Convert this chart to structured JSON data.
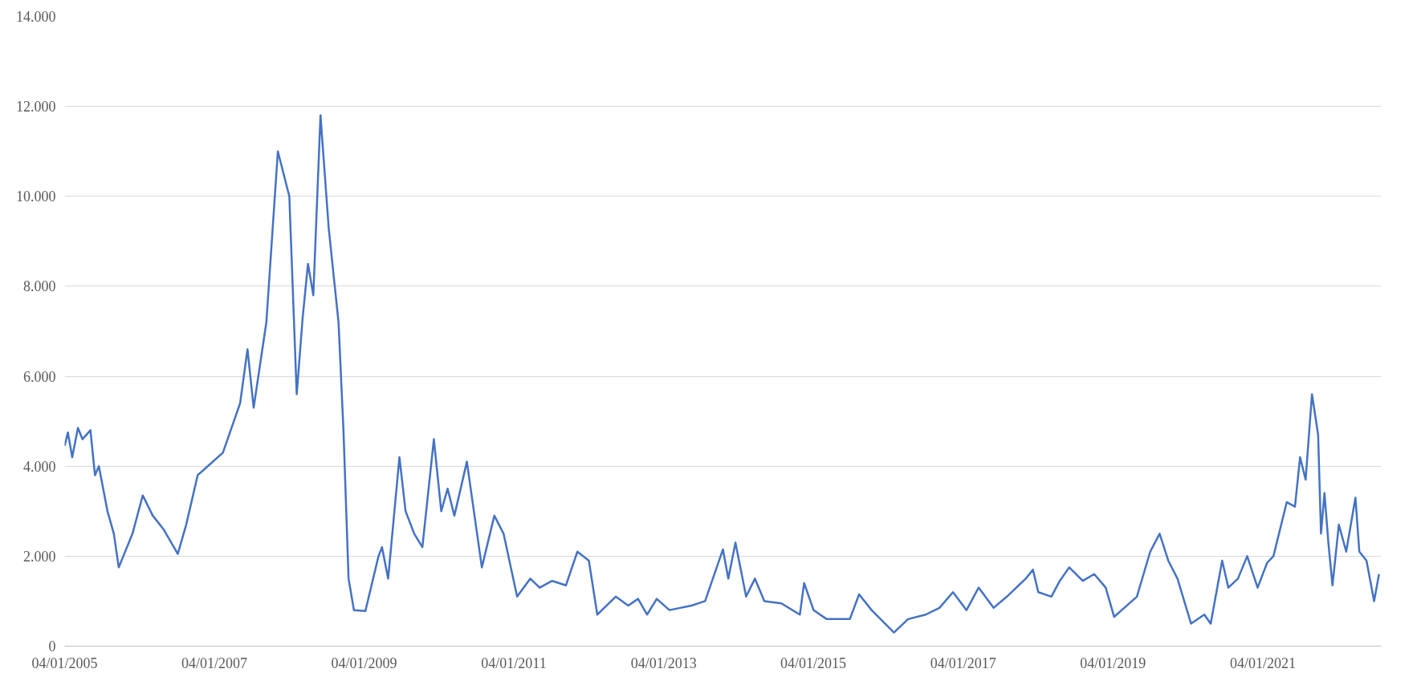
{
  "chart_data": {
    "type": "line",
    "x": [
      "2005-01-04",
      "2005-01-20",
      "2005-02-10",
      "2005-03-10",
      "2005-04-01",
      "2005-05-10",
      "2005-06-01",
      "2005-06-20",
      "2005-08-01",
      "2005-09-01",
      "2005-09-25",
      "2005-12-01",
      "2006-01-20",
      "2006-03-10",
      "2006-05-01",
      "2006-07-10",
      "2006-08-20",
      "2006-10-15",
      "2007-02-15",
      "2007-05-10",
      "2007-06-15",
      "2007-07-15",
      "2007-09-15",
      "2007-11-10",
      "2008-01-05",
      "2008-02-10",
      "2008-03-10",
      "2008-04-05",
      "2008-05-01",
      "2008-06-05",
      "2008-07-15",
      "2008-09-01",
      "2008-09-25",
      "2008-10-20",
      "2008-11-15",
      "2009-01-10",
      "2009-03-15",
      "2009-04-01",
      "2009-05-01",
      "2009-06-25",
      "2009-07-25",
      "2009-09-05",
      "2009-10-15",
      "2009-12-10",
      "2010-01-15",
      "2010-02-15",
      "2010-03-20",
      "2010-05-20",
      "2010-08-01",
      "2010-10-01",
      "2010-11-15",
      "2011-01-20",
      "2011-03-25",
      "2011-05-10",
      "2011-07-10",
      "2011-09-15",
      "2011-11-10",
      "2012-01-05",
      "2012-02-15",
      "2012-05-15",
      "2012-07-15",
      "2012-09-01",
      "2012-10-15",
      "2012-12-01",
      "2013-02-01",
      "2013-05-20",
      "2013-07-25",
      "2013-10-20",
      "2013-11-15",
      "2013-12-20",
      "2014-02-10",
      "2014-03-25",
      "2014-05-10",
      "2014-08-01",
      "2014-10-30",
      "2014-11-20",
      "2015-01-05",
      "2015-03-10",
      "2015-07-01",
      "2015-08-15",
      "2015-10-15",
      "2016-02-01",
      "2016-04-10",
      "2016-07-05",
      "2016-09-10",
      "2016-11-15",
      "2017-01-20",
      "2017-03-20",
      "2017-06-01",
      "2017-08-05",
      "2017-11-05",
      "2017-12-10",
      "2018-01-05",
      "2018-03-10",
      "2018-04-20",
      "2018-06-05",
      "2018-08-10",
      "2018-10-05",
      "2018-11-30",
      "2019-01-10",
      "2019-05-01",
      "2019-07-05",
      "2019-08-20",
      "2019-10-01",
      "2019-11-15",
      "2020-01-20",
      "2020-03-25",
      "2020-04-25",
      "2020-06-20",
      "2020-07-20",
      "2020-09-05",
      "2020-10-20",
      "2020-12-10",
      "2021-01-25",
      "2021-02-25",
      "2021-05-01",
      "2021-06-10",
      "2021-07-05",
      "2021-08-01",
      "2021-09-01",
      "2021-10-01",
      "2021-10-15",
      "2021-11-01",
      "2021-11-20",
      "2021-12-10",
      "2022-01-10",
      "2022-02-15",
      "2022-04-01",
      "2022-04-20",
      "2022-05-25",
      "2022-07-01",
      "2022-07-25"
    ],
    "values": [
      4450,
      4750,
      4200,
      4850,
      4600,
      4800,
      3800,
      4000,
      3000,
      2500,
      1750,
      2500,
      3350,
      2900,
      2600,
      2050,
      2700,
      3800,
      4300,
      5400,
      6600,
      5300,
      7200,
      11000,
      10000,
      5600,
      7300,
      8500,
      7800,
      11800,
      9300,
      7200,
      4800,
      1500,
      800,
      780,
      2000,
      2200,
      1500,
      4200,
      3000,
      2500,
      2200,
      4600,
      3000,
      3500,
      2900,
      4100,
      1750,
      2900,
      2500,
      1100,
      1500,
      1300,
      1450,
      1350,
      2100,
      1900,
      700,
      1100,
      900,
      1050,
      700,
      1050,
      800,
      900,
      1000,
      2150,
      1500,
      2300,
      1100,
      1500,
      1000,
      950,
      700,
      1400,
      800,
      600,
      600,
      1150,
      800,
      300,
      600,
      700,
      850,
      1200,
      800,
      1300,
      850,
      1100,
      1500,
      1700,
      1200,
      1100,
      1450,
      1750,
      1450,
      1600,
      1300,
      650,
      1100,
      2100,
      2500,
      1900,
      1500,
      500,
      700,
      500,
      1900,
      1300,
      1500,
      2000,
      1300,
      1850,
      2000,
      3200,
      3100,
      4200,
      3700,
      5600,
      4700,
      2500,
      3400,
      2300,
      1350,
      2700,
      2100,
      3300,
      2100,
      1900,
      1000,
      1600
    ],
    "color": "#4472c4",
    "xlim": [
      "2005-01-04",
      "2022-08-05"
    ],
    "xticks": [
      {
        "value": "2005-01-04",
        "label": "04/01/2005"
      },
      {
        "value": "2007-01-04",
        "label": "04/01/2007"
      },
      {
        "value": "2009-01-04",
        "label": "04/01/2009"
      },
      {
        "value": "2011-01-04",
        "label": "04/01/2011"
      },
      {
        "value": "2013-01-04",
        "label": "04/01/2013"
      },
      {
        "value": "2015-01-04",
        "label": "04/01/2015"
      },
      {
        "value": "2017-01-04",
        "label": "04/01/2017"
      },
      {
        "value": "2019-01-04",
        "label": "04/01/2019"
      },
      {
        "value": "2021-01-04",
        "label": "04/01/2021"
      }
    ],
    "ylim": [
      0,
      14000
    ],
    "yticks": [
      0,
      {
        "value": 2000,
        "label": "2.000"
      },
      {
        "value": 4000,
        "label": "4.000"
      },
      {
        "value": 6000,
        "label": "6.000"
      },
      {
        "value": 8000,
        "label": "8.000"
      },
      {
        "value": 10000,
        "label": "10.000"
      },
      {
        "value": 12000,
        "label": "12.000"
      },
      {
        "value": 14000,
        "label": "14.000"
      }
    ],
    "grid": "y"
  }
}
